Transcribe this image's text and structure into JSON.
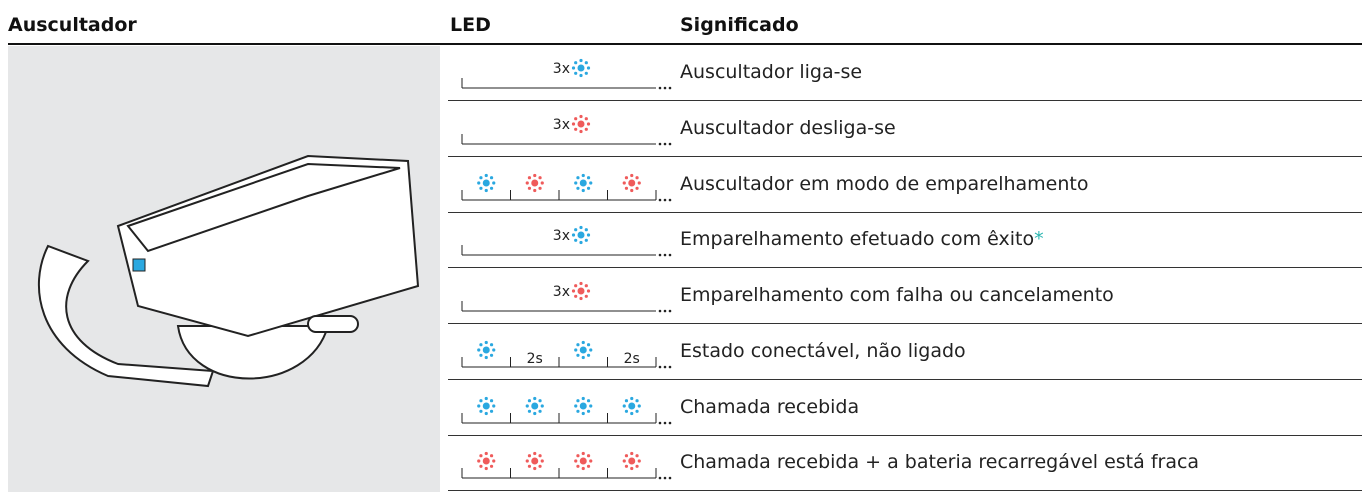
{
  "header": {
    "columns": [
      "Auscultador",
      "LED",
      "Significado"
    ]
  },
  "rows": [
    {
      "led": {
        "lights": [
          "#2aa8e0"
        ],
        "label": "3x"
      },
      "meaning": "Auscultador liga-se"
    },
    {
      "led": {
        "lights": [
          "#ef5b5b"
        ],
        "label": "3x"
      },
      "meaning": "Auscultador desliga-se"
    },
    {
      "led": {
        "lights": [
          "#2aa8e0",
          "#ef5b5b",
          "#2aa8e0",
          "#ef5b5b"
        ]
      },
      "meaning": "Auscultador em modo de emparelhamento"
    },
    {
      "led": {
        "lights": [
          "#2aa8e0"
        ],
        "label": "3x"
      },
      "meaning": "Emparelhamento efetuado com êxito",
      "note": "*"
    },
    {
      "led": {
        "lights": [
          "#ef5b5b"
        ],
        "label": "3x"
      },
      "meaning": "Emparelhamento com falha ou cancelamento"
    },
    {
      "led": {
        "lights": [
          "#2aa8e0",
          "#2aa8e0"
        ],
        "label": "2s"
      },
      "meaning": "Estado conectável, não ligado"
    },
    {
      "led": {
        "lights": [
          "#2aa8e0",
          "#2aa8e0",
          "#2aa8e0",
          "#2aa8e0"
        ]
      },
      "meaning": "Chamada recebida"
    },
    {
      "led": {
        "lights": [
          "#ef5b5b",
          "#ef5b5b",
          "#ef5b5b",
          "#ef5b5b"
        ]
      },
      "meaning": "Chamada recebida + a bateria recarregável está fraca"
    }
  ]
}
